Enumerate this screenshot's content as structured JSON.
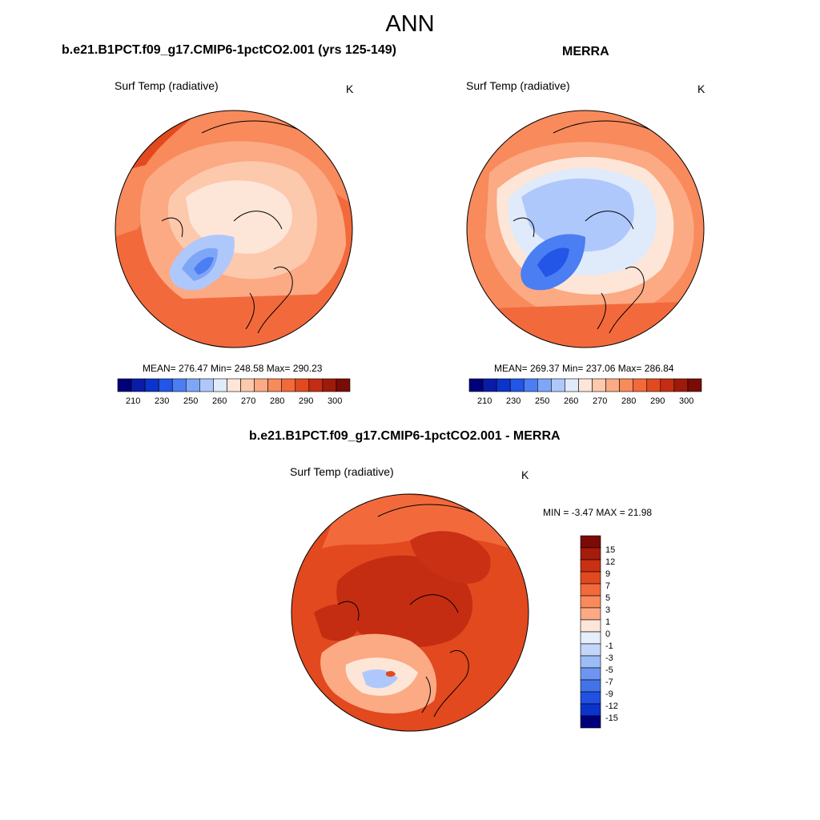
{
  "title": "ANN",
  "colors": {
    "levels_full": [
      "#00007a",
      "#0a1ca6",
      "#0c33cc",
      "#2355e6",
      "#4a7ef2",
      "#7ea6f7",
      "#afc8fb",
      "#dfeafb",
      "#fde6d8",
      "#fcc9ad",
      "#fbaa84",
      "#f88a5c",
      "#f26a3c",
      "#e2491f",
      "#c42d12",
      "#9e1a0b",
      "#7a0b05"
    ],
    "map_fill": "#f8a07a"
  },
  "panels": [
    {
      "title": "b.e21.B1PCT.f09_g17.CMIP6-1pctCO2.001 (yrs 125-149)",
      "variable": "Surf Temp (radiative)",
      "units": "K",
      "stats": "MEAN= 276.47  Min= 248.58  Max= 290.23",
      "colorbar_ticks": [
        "210",
        "230",
        "250",
        "260",
        "270",
        "280",
        "290",
        "300"
      ]
    },
    {
      "title": "MERRA",
      "variable": "Surf Temp (radiative)",
      "units": "K",
      "stats": "MEAN= 269.37  Min= 237.06  Max= 286.84",
      "colorbar_ticks": [
        "210",
        "230",
        "250",
        "260",
        "270",
        "280",
        "290",
        "300"
      ]
    }
  ],
  "diff": {
    "title": "b.e21.B1PCT.f09_g17.CMIP6-1pctCO2.001 - MERRA",
    "variable": "Surf Temp (radiative)",
    "units": "K",
    "stats": "MIN =  -3.47 MAX =  21.98",
    "colorbar_ticks": [
      "15",
      "12",
      "9",
      "7",
      "5",
      "3",
      "1",
      "0",
      "-1",
      "-3",
      "-5",
      "-7",
      "-9",
      "-12",
      "-15"
    ],
    "colorbar_colors": [
      "#7a0b05",
      "#a51c0c",
      "#c93014",
      "#e2491f",
      "#f26a3c",
      "#f88a5c",
      "#fbaa84",
      "#fde6d8",
      "#e5eefb",
      "#c3d6f9",
      "#9cbcf6",
      "#6e95f0",
      "#4373e8",
      "#2151e0",
      "#0c33cc",
      "#00007a"
    ]
  }
}
